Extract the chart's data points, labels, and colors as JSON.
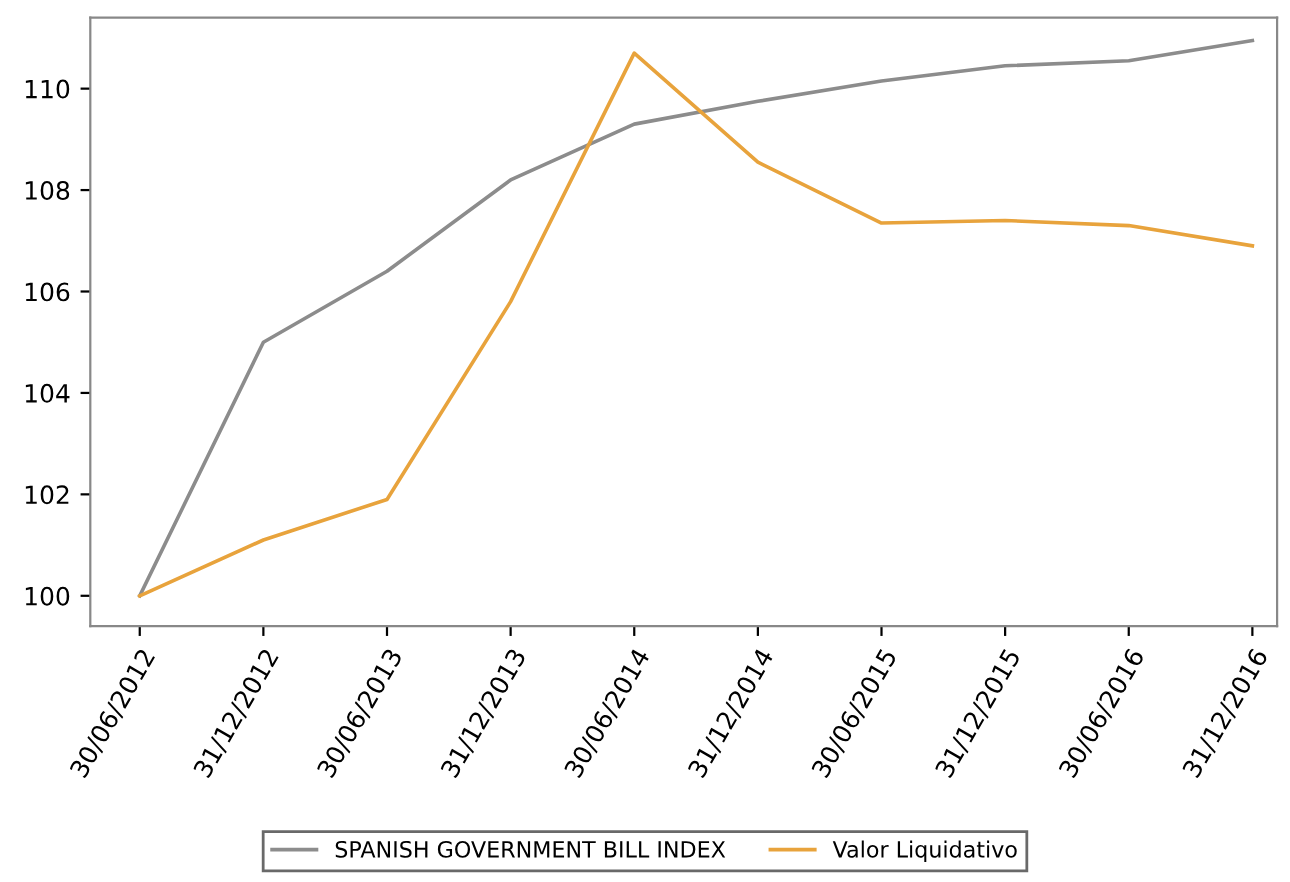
{
  "chart_data": {
    "type": "line",
    "categories": [
      "30/06/2012",
      "31/12/2012",
      "30/06/2013",
      "31/12/2013",
      "30/06/2014",
      "31/12/2014",
      "30/06/2015",
      "31/12/2015",
      "30/06/2016",
      "31/12/2016"
    ],
    "series": [
      {
        "name": "SPANISH GOVERNMENT BILL INDEX",
        "color": "#8c8c8c",
        "values": [
          100.0,
          105.0,
          106.4,
          108.2,
          109.3,
          109.75,
          110.15,
          110.45,
          110.55,
          110.95
        ]
      },
      {
        "name": "Valor Liquidativo",
        "color": "#e8a33c",
        "values": [
          100.0,
          101.1,
          101.9,
          105.8,
          110.7,
          108.55,
          107.35,
          107.4,
          107.3,
          106.9
        ]
      }
    ],
    "ylim": [
      99.4,
      111.4
    ],
    "yticks": [
      100,
      102,
      104,
      106,
      108,
      110
    ],
    "grid": false,
    "legend": "bottom",
    "marker": "none",
    "line_style": "solid"
  }
}
